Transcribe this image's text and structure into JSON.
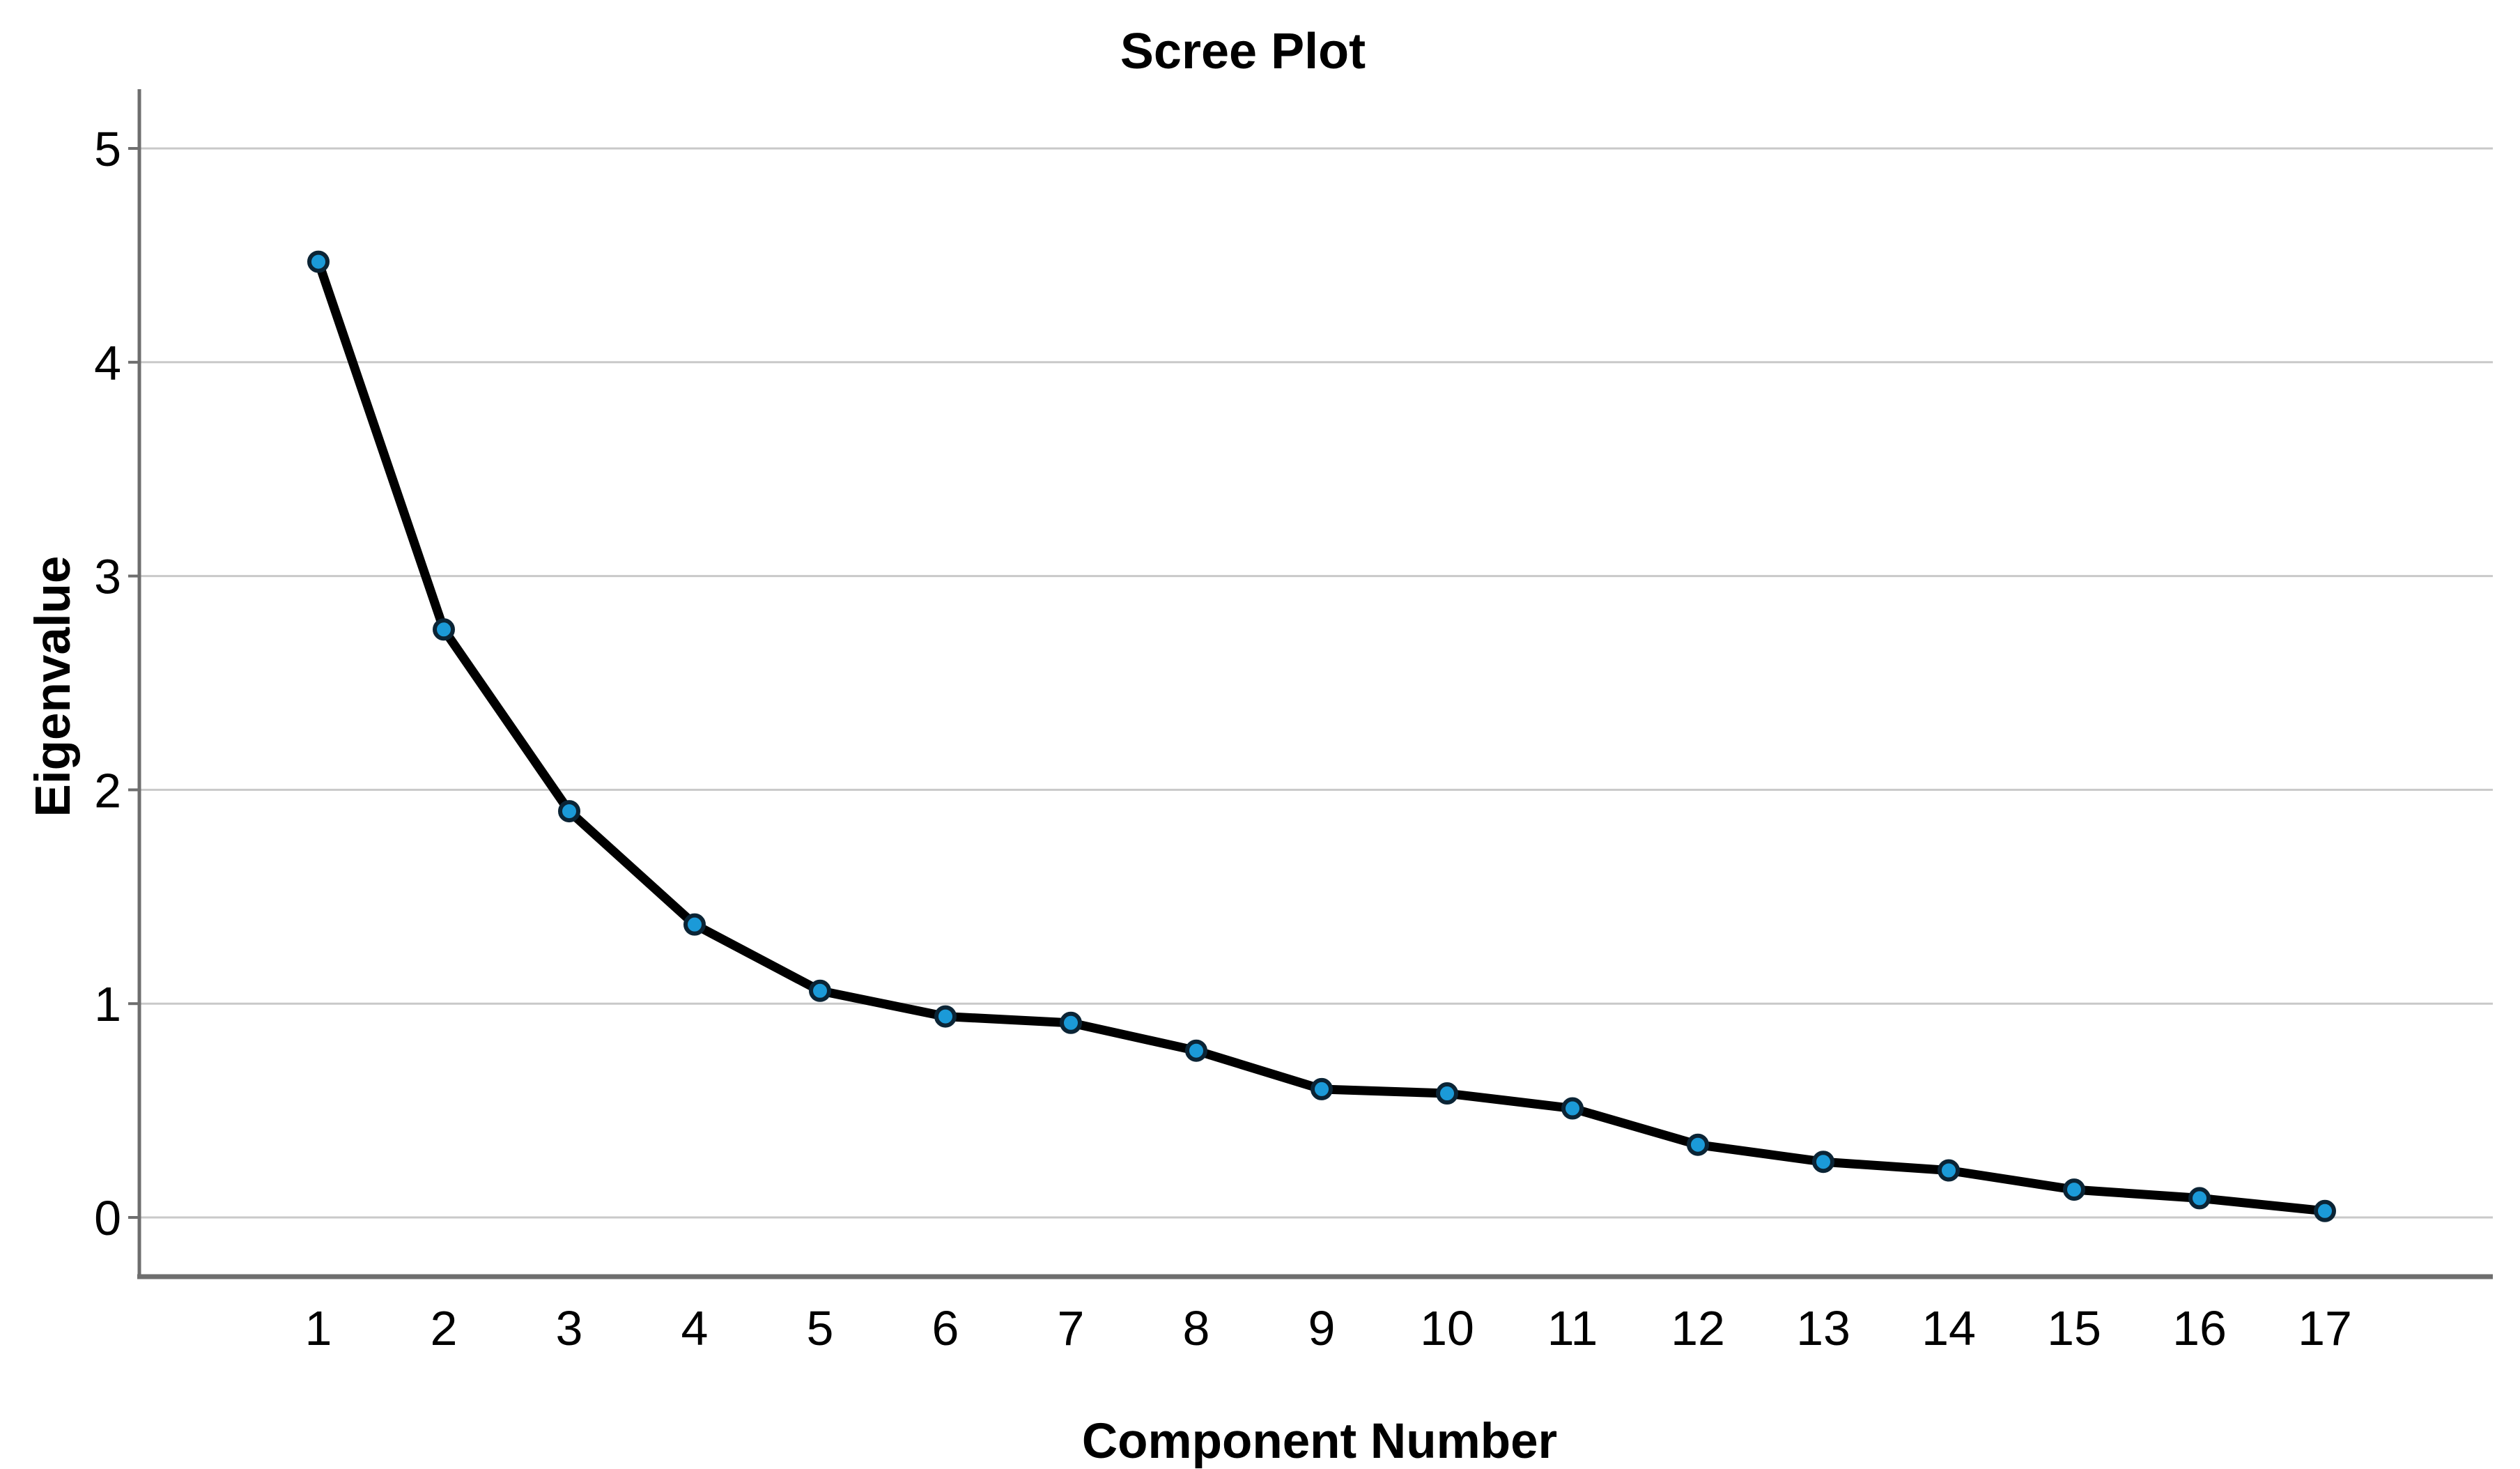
{
  "page": {
    "background": "#ffffff"
  },
  "chart_data": {
    "type": "line",
    "title": "Scree Plot",
    "xlabel": "Component Number",
    "ylabel": "Eigenvalue",
    "x": [
      1,
      2,
      3,
      4,
      5,
      6,
      7,
      8,
      9,
      10,
      11,
      12,
      13,
      14,
      15,
      16,
      17
    ],
    "values": [
      4.47,
      2.75,
      1.9,
      1.37,
      1.06,
      0.94,
      0.91,
      0.78,
      0.6,
      0.58,
      0.51,
      0.34,
      0.26,
      0.22,
      0.13,
      0.09,
      0.03
    ],
    "series_name": "Eigenvalue",
    "x_tick_labels": [
      "1",
      "2",
      "3",
      "4",
      "5",
      "6",
      "7",
      "8",
      "9",
      "10",
      "11",
      "12",
      "13",
      "14",
      "15",
      "16",
      "17"
    ],
    "y_tick_labels": [
      "0",
      "1",
      "2",
      "3",
      "4",
      "5"
    ],
    "y_tick_values": [
      0,
      1,
      2,
      3,
      4,
      5
    ],
    "ylim": [
      0,
      5
    ],
    "grid": "horizontal",
    "legend": "none",
    "marker": "circle",
    "colors": {
      "line": "#000000",
      "marker_fill": "#1B9AD8",
      "marker_edge": "#0B2435",
      "gridline": "#C9C9C9",
      "axis": "#6E6E6E",
      "text": "#000000",
      "background": "#FFFFFF"
    }
  }
}
